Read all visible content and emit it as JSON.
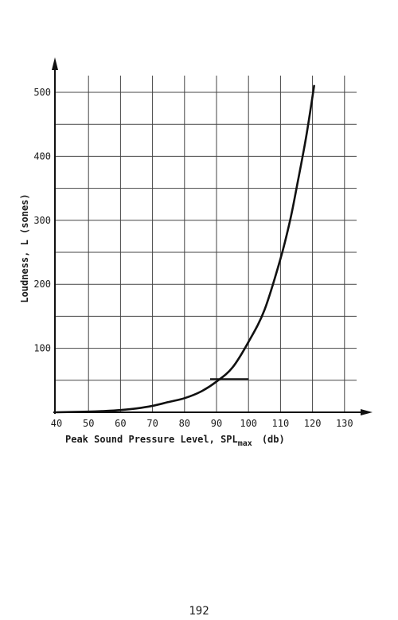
{
  "page": {
    "number": "192"
  },
  "chart_data": {
    "type": "line",
    "title": "",
    "xlabel": "Peak Sound Pressure Level, SPL",
    "xlabel_subscript": "max",
    "xlabel_unit": "(db)",
    "ylabel": "Loudness, L  (sones)",
    "xlim": [
      40,
      135
    ],
    "ylim": [
      0,
      520
    ],
    "x_ticks": [
      40,
      50,
      60,
      70,
      80,
      90,
      100,
      110,
      120,
      130
    ],
    "y_ticks": [
      100,
      200,
      300,
      400,
      500
    ],
    "x_gridlines": [
      50,
      60,
      70,
      80,
      90,
      100,
      110,
      120,
      130
    ],
    "y_gridlines": [
      50,
      100,
      150,
      200,
      250,
      300,
      350,
      400,
      450,
      500
    ],
    "grid": true,
    "series": [
      {
        "x": [
          40,
          50,
          55,
          60,
          65,
          70,
          75,
          80,
          85,
          90,
          95,
          100,
          105,
          110,
          113,
          115,
          118,
          120.5
        ],
        "y": [
          0,
          1,
          2,
          3.5,
          6,
          10,
          16,
          22,
          32,
          48,
          70,
          110,
          160,
          240,
          300,
          350,
          430,
          510
        ]
      }
    ],
    "annotations": [
      {
        "type": "short-horizontal-mark",
        "x": [
          88,
          100
        ],
        "y": 52
      }
    ]
  }
}
